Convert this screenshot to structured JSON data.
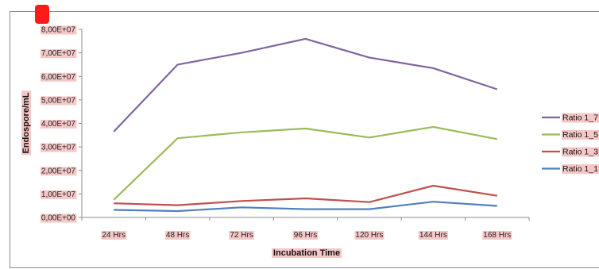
{
  "chart_data": {
    "type": "line",
    "title": "",
    "xlabel": "Incubation Time",
    "ylabel": "Endospore/mL",
    "categories": [
      "24 Hrs",
      "48 Hrs",
      "72 Hrs",
      "96 Hrs",
      "120 Hrs",
      "144 Hrs",
      "168 Hrs"
    ],
    "ylim": [
      0,
      80000000
    ],
    "yticks": [
      "0,00E+00",
      "1,00E+07",
      "2,00E+07",
      "3,00E+07",
      "4,00E+07",
      "5,00E+07",
      "6,00E+07",
      "7,00E+07",
      "8,00E+07"
    ],
    "grid": false,
    "legend_position": "right",
    "series": [
      {
        "name": "Ratio 1_7",
        "color": "#8064a2",
        "values": [
          36500000,
          65000000,
          70000000,
          76000000,
          68000000,
          63500000,
          54500000
        ]
      },
      {
        "name": "Ratio 1_5",
        "color": "#9bbb59",
        "values": [
          7500000,
          33700000,
          36200000,
          37800000,
          34000000,
          38500000,
          33300000
        ]
      },
      {
        "name": "Ratio 1_3",
        "color": "#c0504d",
        "values": [
          6000000,
          5200000,
          7000000,
          8100000,
          6500000,
          13500000,
          9200000
        ]
      },
      {
        "name": "Ratio 1_1",
        "color": "#4f81bd",
        "values": [
          3200000,
          2700000,
          4300000,
          3500000,
          3500000,
          6700000,
          4900000
        ]
      }
    ]
  }
}
